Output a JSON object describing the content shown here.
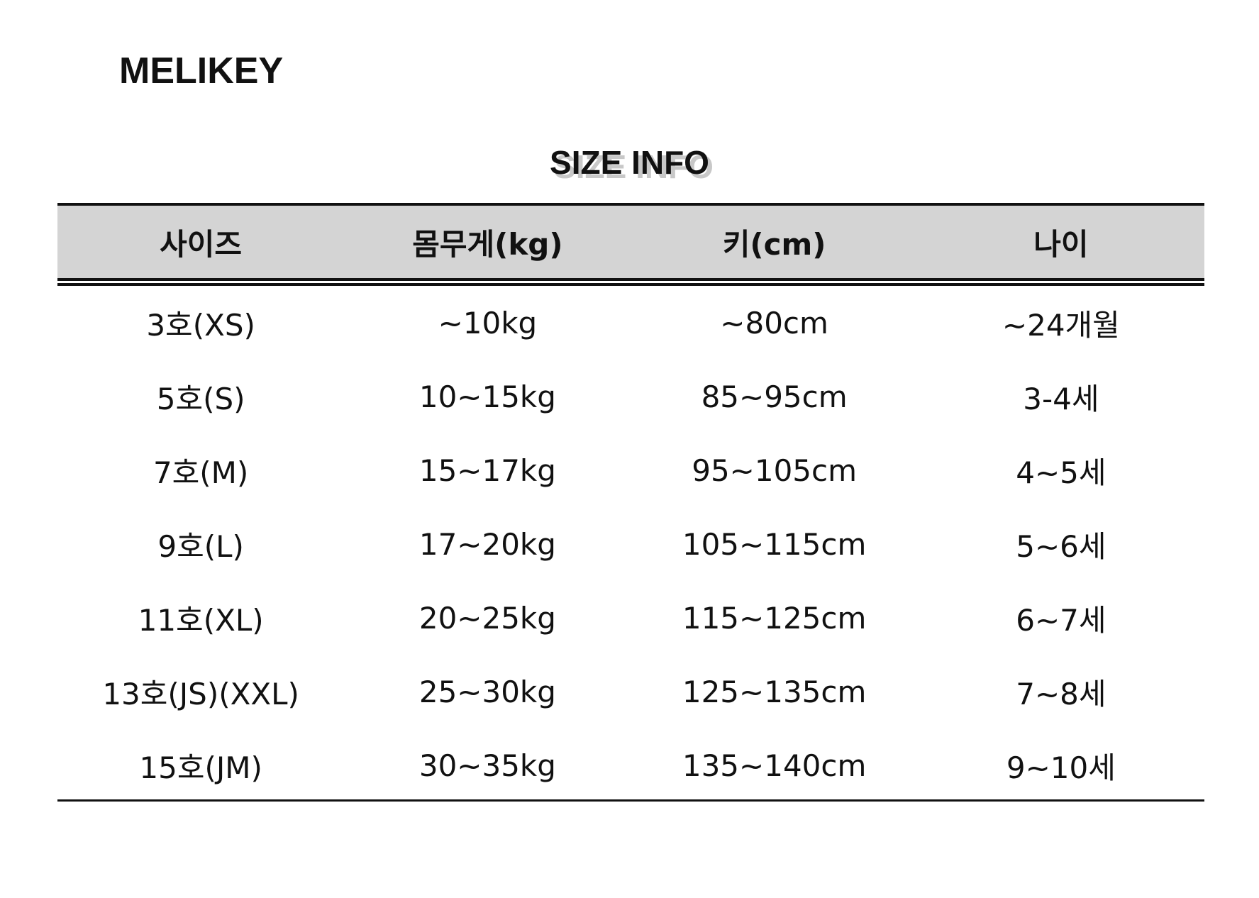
{
  "brand": "MELIKEY",
  "title": "SIZE INFO",
  "table": {
    "headers": [
      "사이즈",
      "몸무게(kg)",
      "키(cm)",
      "나이"
    ],
    "rows": [
      [
        "3호(XS)",
        "~10kg",
        "~80cm",
        "~24개월"
      ],
      [
        "5호(S)",
        "10~15kg",
        "85~95cm",
        "3-4세"
      ],
      [
        "7호(M)",
        "15~17kg",
        "95~105cm",
        "4~5세"
      ],
      [
        "9호(L)",
        "17~20kg",
        "105~115cm",
        "5~6세"
      ],
      [
        "11호(XL)",
        "20~25kg",
        "115~125cm",
        "6~7세"
      ],
      [
        "13호(JS)(XXL)",
        "25~30kg",
        "125~135cm",
        "7~8세"
      ],
      [
        "15호(JM)",
        "30~35kg",
        "135~140cm",
        "9~10세"
      ]
    ]
  },
  "colors": {
    "header_bg": "#d4d4d4",
    "text": "#111111"
  }
}
